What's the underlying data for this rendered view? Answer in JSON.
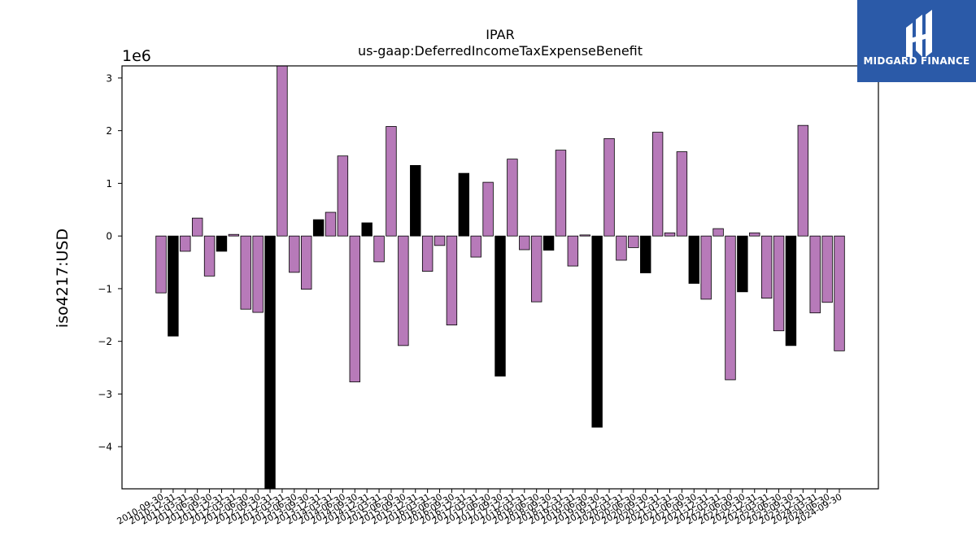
{
  "chart_data": {
    "type": "bar",
    "title": "IPAR",
    "subtitle": "us-gaap:DeferredIncomeTaxExpenseBenefit",
    "ylabel": "iso4217:USD",
    "xlabel": "",
    "offset_text": "1e6",
    "scale": 1000000,
    "ylim": [
      -4.8,
      3.23
    ],
    "yticks": [
      -4,
      -3,
      -2,
      -1,
      0,
      1,
      2,
      3
    ],
    "ytick_labels": [
      "−4",
      "−3",
      "−2",
      "−1",
      "0",
      "1",
      "2",
      "3"
    ],
    "grid": false,
    "bar_colors": {
      "purple": "#b77ab9",
      "black": "#000000"
    },
    "categories": [
      "2010-09-30",
      "2010-12-31",
      "2011-03-31",
      "2011-06-30",
      "2011-09-30",
      "2011-12-31",
      "2012-03-31",
      "2012-06-30",
      "2012-09-30",
      "2012-12-31",
      "2013-03-31",
      "2013-06-30",
      "2013-09-30",
      "2013-12-31",
      "2014-03-31",
      "2014-06-30",
      "2014-09-30",
      "2014-12-31",
      "2015-03-31",
      "2015-06-30",
      "2015-09-30",
      "2015-12-31",
      "2016-03-31",
      "2016-06-30",
      "2016-09-30",
      "2016-12-31",
      "2017-03-31",
      "2017-06-30",
      "2017-09-30",
      "2017-12-31",
      "2018-03-31",
      "2018-06-30",
      "2018-09-30",
      "2018-12-31",
      "2019-03-31",
      "2019-06-30",
      "2019-09-30",
      "2019-12-31",
      "2020-03-31",
      "2020-06-30",
      "2020-09-30",
      "2020-12-31",
      "2021-03-31",
      "2021-06-30",
      "2021-09-30",
      "2021-12-31",
      "2022-03-31",
      "2022-06-30",
      "2022-09-30",
      "2022-12-31",
      "2023-03-31",
      "2023-06-30",
      "2023-09-30",
      "2023-12-31",
      "2024-03-31",
      "2024-06-30",
      "2024-09-30"
    ],
    "values": [
      -1.08,
      -1.9,
      -0.29,
      0.34,
      -0.76,
      -0.29,
      0.03,
      -1.39,
      -1.45,
      -4.8,
      3.23,
      -0.69,
      -1.01,
      0.31,
      0.45,
      1.52,
      -2.77,
      0.25,
      -0.49,
      2.08,
      -2.08,
      1.34,
      -0.67,
      -0.18,
      -1.69,
      1.19,
      -0.4,
      1.02,
      -2.66,
      1.46,
      -0.26,
      -1.25,
      -0.27,
      1.63,
      -0.57,
      0.02,
      -3.63,
      1.85,
      -0.46,
      -0.22,
      -0.7,
      1.97,
      0.06,
      1.6,
      -0.9,
      -1.2,
      0.14,
      -2.73,
      -1.06,
      0.06,
      -1.18,
      -1.8,
      -2.08,
      2.1,
      -1.46,
      -1.26,
      -2.18
    ],
    "colors": [
      "purple",
      "black",
      "purple",
      "purple",
      "purple",
      "black",
      "purple",
      "purple",
      "purple",
      "black",
      "purple",
      "purple",
      "purple",
      "black",
      "purple",
      "purple",
      "purple",
      "black",
      "purple",
      "purple",
      "purple",
      "black",
      "purple",
      "purple",
      "purple",
      "black",
      "purple",
      "purple",
      "black",
      "purple",
      "purple",
      "purple",
      "black",
      "purple",
      "purple",
      "purple",
      "black",
      "purple",
      "purple",
      "purple",
      "black",
      "purple",
      "purple",
      "purple",
      "black",
      "purple",
      "purple",
      "purple",
      "black",
      "purple",
      "purple",
      "purple",
      "black",
      "purple",
      "purple",
      "purple",
      "purple"
    ]
  },
  "logo": {
    "text": "MIDGARD FINANCE"
  }
}
